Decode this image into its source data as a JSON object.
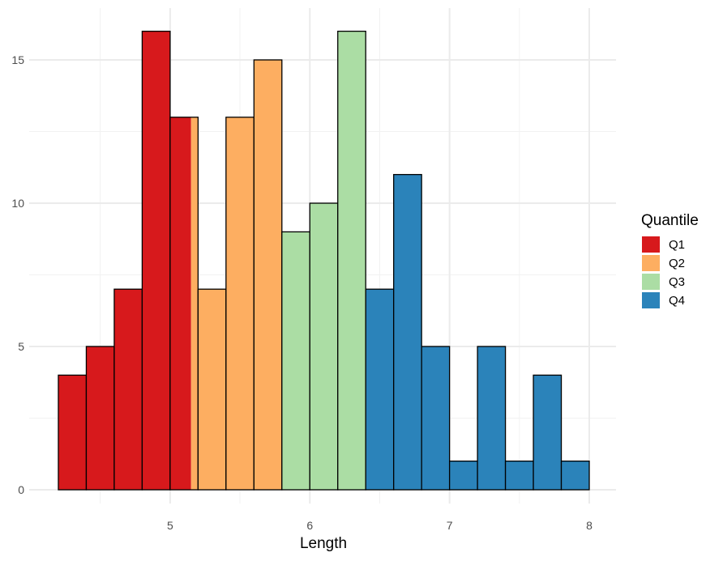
{
  "chart_data": {
    "type": "bar",
    "subtype": "histogram",
    "xlabel": "Length",
    "ylabel": "",
    "xlim": [
      4.1,
      8.2
    ],
    "ylim": [
      0,
      16.9
    ],
    "x_ticks": [
      5,
      6,
      7,
      8
    ],
    "y_ticks": [
      0,
      5,
      10,
      15
    ],
    "grid": true,
    "legend": {
      "title": "Quantile",
      "placement": "right",
      "entries": [
        {
          "label": "Q1",
          "color": "#D7191C"
        },
        {
          "label": "Q2",
          "color": "#FDAE61"
        },
        {
          "label": "Q3",
          "color": "#ABDDA4"
        },
        {
          "label": "Q4",
          "color": "#2B83BA"
        }
      ]
    },
    "bin_width": 0.2,
    "bins": [
      {
        "x0": 4.2,
        "x1": 4.4,
        "segments": [
          {
            "q": "Q1",
            "count": 4
          }
        ]
      },
      {
        "x0": 4.4,
        "x1": 4.6,
        "segments": [
          {
            "q": "Q1",
            "count": 5
          }
        ]
      },
      {
        "x0": 4.6,
        "x1": 4.8,
        "segments": [
          {
            "q": "Q1",
            "count": 7
          }
        ]
      },
      {
        "x0": 4.8,
        "x1": 5.0,
        "segments": [
          {
            "q": "Q1",
            "count": 16
          }
        ]
      },
      {
        "x0": 5.0,
        "x1": 5.2,
        "split_at": 5.15,
        "segments": [
          {
            "q": "Q1",
            "count": 13
          },
          {
            "q": "Q2",
            "count": 13
          }
        ]
      },
      {
        "x0": 5.2,
        "x1": 5.4,
        "segments": [
          {
            "q": "Q2",
            "count": 7
          }
        ]
      },
      {
        "x0": 5.4,
        "x1": 5.6,
        "segments": [
          {
            "q": "Q2",
            "count": 13
          }
        ]
      },
      {
        "x0": 5.6,
        "x1": 5.8,
        "segments": [
          {
            "q": "Q2",
            "count": 15
          }
        ]
      },
      {
        "x0": 5.8,
        "x1": 6.0,
        "segments": [
          {
            "q": "Q3",
            "count": 9
          }
        ]
      },
      {
        "x0": 6.0,
        "x1": 6.2,
        "segments": [
          {
            "q": "Q3",
            "count": 10
          }
        ]
      },
      {
        "x0": 6.2,
        "x1": 6.4,
        "segments": [
          {
            "q": "Q3",
            "count": 16
          }
        ]
      },
      {
        "x0": 6.4,
        "x1": 6.6,
        "segments": [
          {
            "q": "Q4",
            "count": 7
          }
        ]
      },
      {
        "x0": 6.6,
        "x1": 6.8,
        "segments": [
          {
            "q": "Q4",
            "count": 11
          }
        ]
      },
      {
        "x0": 6.8,
        "x1": 7.0,
        "segments": [
          {
            "q": "Q4",
            "count": 5
          }
        ]
      },
      {
        "x0": 7.0,
        "x1": 7.2,
        "segments": [
          {
            "q": "Q4",
            "count": 1
          }
        ]
      },
      {
        "x0": 7.2,
        "x1": 7.4,
        "segments": [
          {
            "q": "Q4",
            "count": 5
          }
        ]
      },
      {
        "x0": 7.4,
        "x1": 7.6,
        "segments": [
          {
            "q": "Q4",
            "count": 1
          }
        ]
      },
      {
        "x0": 7.6,
        "x1": 7.8,
        "segments": [
          {
            "q": "Q4",
            "count": 4
          }
        ]
      },
      {
        "x0": 7.8,
        "x1": 8.0,
        "segments": [
          {
            "q": "Q4",
            "count": 1
          }
        ]
      }
    ]
  }
}
